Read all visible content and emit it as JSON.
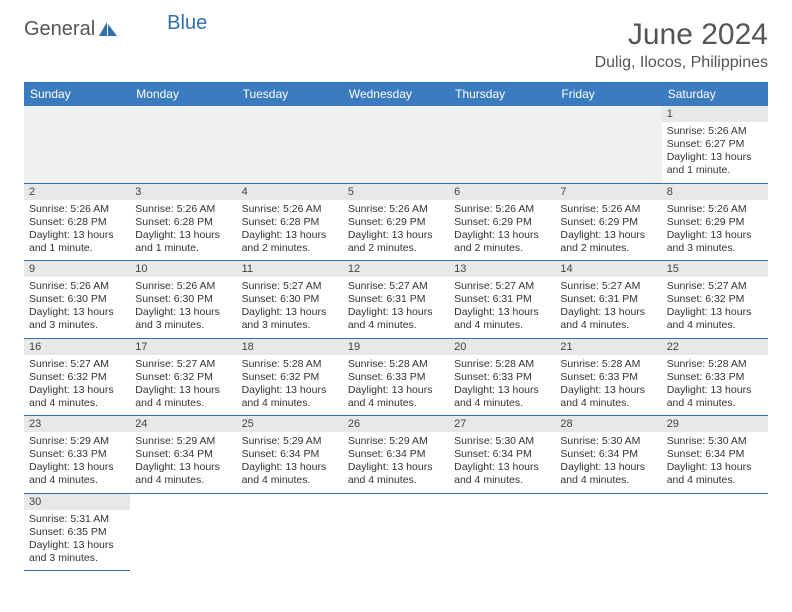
{
  "brand": {
    "part1": "General",
    "part2": "Blue"
  },
  "title": "June 2024",
  "location": "Dulig, Ilocos, Philippines",
  "colors": {
    "header_bg": "#3b7bbf",
    "border": "#2f6fb0",
    "daynum_bg": "#e8e8e8",
    "empty_bg": "#f0f0f0"
  },
  "weekdays": [
    "Sunday",
    "Monday",
    "Tuesday",
    "Wednesday",
    "Thursday",
    "Friday",
    "Saturday"
  ],
  "weeks": [
    [
      null,
      null,
      null,
      null,
      null,
      null,
      {
        "d": "1",
        "sr": "5:26 AM",
        "ss": "6:27 PM",
        "dl": "13 hours and 1 minute."
      }
    ],
    [
      {
        "d": "2",
        "sr": "5:26 AM",
        "ss": "6:28 PM",
        "dl": "13 hours and 1 minute."
      },
      {
        "d": "3",
        "sr": "5:26 AM",
        "ss": "6:28 PM",
        "dl": "13 hours and 1 minute."
      },
      {
        "d": "4",
        "sr": "5:26 AM",
        "ss": "6:28 PM",
        "dl": "13 hours and 2 minutes."
      },
      {
        "d": "5",
        "sr": "5:26 AM",
        "ss": "6:29 PM",
        "dl": "13 hours and 2 minutes."
      },
      {
        "d": "6",
        "sr": "5:26 AM",
        "ss": "6:29 PM",
        "dl": "13 hours and 2 minutes."
      },
      {
        "d": "7",
        "sr": "5:26 AM",
        "ss": "6:29 PM",
        "dl": "13 hours and 2 minutes."
      },
      {
        "d": "8",
        "sr": "5:26 AM",
        "ss": "6:29 PM",
        "dl": "13 hours and 3 minutes."
      }
    ],
    [
      {
        "d": "9",
        "sr": "5:26 AM",
        "ss": "6:30 PM",
        "dl": "13 hours and 3 minutes."
      },
      {
        "d": "10",
        "sr": "5:26 AM",
        "ss": "6:30 PM",
        "dl": "13 hours and 3 minutes."
      },
      {
        "d": "11",
        "sr": "5:27 AM",
        "ss": "6:30 PM",
        "dl": "13 hours and 3 minutes."
      },
      {
        "d": "12",
        "sr": "5:27 AM",
        "ss": "6:31 PM",
        "dl": "13 hours and 4 minutes."
      },
      {
        "d": "13",
        "sr": "5:27 AM",
        "ss": "6:31 PM",
        "dl": "13 hours and 4 minutes."
      },
      {
        "d": "14",
        "sr": "5:27 AM",
        "ss": "6:31 PM",
        "dl": "13 hours and 4 minutes."
      },
      {
        "d": "15",
        "sr": "5:27 AM",
        "ss": "6:32 PM",
        "dl": "13 hours and 4 minutes."
      }
    ],
    [
      {
        "d": "16",
        "sr": "5:27 AM",
        "ss": "6:32 PM",
        "dl": "13 hours and 4 minutes."
      },
      {
        "d": "17",
        "sr": "5:27 AM",
        "ss": "6:32 PM",
        "dl": "13 hours and 4 minutes."
      },
      {
        "d": "18",
        "sr": "5:28 AM",
        "ss": "6:32 PM",
        "dl": "13 hours and 4 minutes."
      },
      {
        "d": "19",
        "sr": "5:28 AM",
        "ss": "6:33 PM",
        "dl": "13 hours and 4 minutes."
      },
      {
        "d": "20",
        "sr": "5:28 AM",
        "ss": "6:33 PM",
        "dl": "13 hours and 4 minutes."
      },
      {
        "d": "21",
        "sr": "5:28 AM",
        "ss": "6:33 PM",
        "dl": "13 hours and 4 minutes."
      },
      {
        "d": "22",
        "sr": "5:28 AM",
        "ss": "6:33 PM",
        "dl": "13 hours and 4 minutes."
      }
    ],
    [
      {
        "d": "23",
        "sr": "5:29 AM",
        "ss": "6:33 PM",
        "dl": "13 hours and 4 minutes."
      },
      {
        "d": "24",
        "sr": "5:29 AM",
        "ss": "6:34 PM",
        "dl": "13 hours and 4 minutes."
      },
      {
        "d": "25",
        "sr": "5:29 AM",
        "ss": "6:34 PM",
        "dl": "13 hours and 4 minutes."
      },
      {
        "d": "26",
        "sr": "5:29 AM",
        "ss": "6:34 PM",
        "dl": "13 hours and 4 minutes."
      },
      {
        "d": "27",
        "sr": "5:30 AM",
        "ss": "6:34 PM",
        "dl": "13 hours and 4 minutes."
      },
      {
        "d": "28",
        "sr": "5:30 AM",
        "ss": "6:34 PM",
        "dl": "13 hours and 4 minutes."
      },
      {
        "d": "29",
        "sr": "5:30 AM",
        "ss": "6:34 PM",
        "dl": "13 hours and 4 minutes."
      }
    ],
    [
      {
        "d": "30",
        "sr": "5:31 AM",
        "ss": "6:35 PM",
        "dl": "13 hours and 3 minutes."
      },
      null,
      null,
      null,
      null,
      null,
      null
    ]
  ],
  "labels": {
    "sunrise": "Sunrise: ",
    "sunset": "Sunset: ",
    "daylight": "Daylight: "
  }
}
